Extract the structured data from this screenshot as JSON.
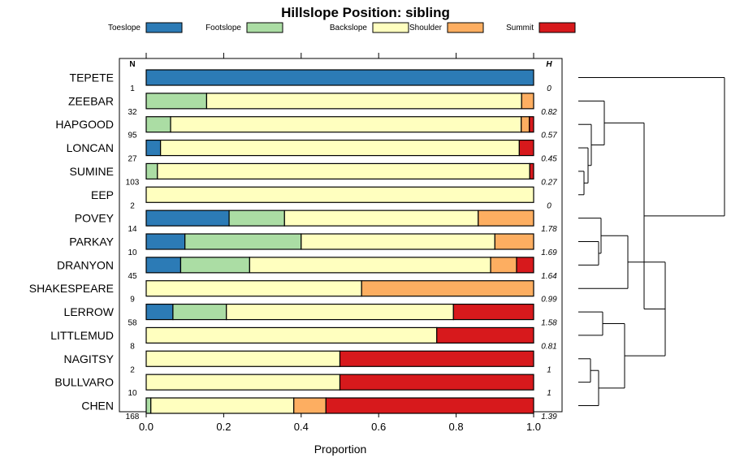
{
  "chart_data": {
    "type": "bar",
    "orientation": "horizontal",
    "stacked": true,
    "title": "Hillslope Position: sibling",
    "xlabel": "Proportion",
    "ylabel": "",
    "xlim": [
      0,
      1
    ],
    "xticks": [
      "0.0",
      "0.2",
      "0.4",
      "0.6",
      "0.8",
      "1.0"
    ],
    "legend_placement": "top",
    "n_header": "N",
    "h_header": "H",
    "series": [
      {
        "name": "Toeslope",
        "color": "#2c7bb6"
      },
      {
        "name": "Footslope",
        "color": "#abdda4"
      },
      {
        "name": "Backslope",
        "color": "#ffffbf"
      },
      {
        "name": "Shoulder",
        "color": "#fdae61"
      },
      {
        "name": "Summit",
        "color": "#d7191c"
      }
    ],
    "categories": [
      {
        "name": "TEPETE",
        "n": "1",
        "h": "0",
        "values": [
          1.0,
          0,
          0,
          0,
          0
        ]
      },
      {
        "name": "ZEEBAR",
        "n": "32",
        "h": "0.82",
        "values": [
          0,
          0.156,
          0.813,
          0.031,
          0
        ]
      },
      {
        "name": "HAPGOOD",
        "n": "95",
        "h": "0.57",
        "values": [
          0,
          0.063,
          0.905,
          0.021,
          0.011
        ]
      },
      {
        "name": "LONCAN",
        "n": "27",
        "h": "0.45",
        "values": [
          0.037,
          0,
          0.926,
          0,
          0.037
        ]
      },
      {
        "name": "SUMINE",
        "n": "103",
        "h": "0.27",
        "values": [
          0,
          0.029,
          0.961,
          0,
          0.01
        ]
      },
      {
        "name": "EEP",
        "n": "2",
        "h": "0",
        "values": [
          0,
          0,
          1.0,
          0,
          0
        ]
      },
      {
        "name": "POVEY",
        "n": "14",
        "h": "1.78",
        "values": [
          0.214,
          0.143,
          0.5,
          0.143,
          0
        ]
      },
      {
        "name": "PARKAY",
        "n": "10",
        "h": "1.69",
        "values": [
          0.1,
          0.3,
          0.5,
          0.1,
          0
        ]
      },
      {
        "name": "DRANYON",
        "n": "45",
        "h": "1.64",
        "values": [
          0.089,
          0.178,
          0.622,
          0.067,
          0.044
        ]
      },
      {
        "name": "SHAKESPEARE",
        "n": "9",
        "h": "0.99",
        "values": [
          0,
          0,
          0.556,
          0.444,
          0
        ]
      },
      {
        "name": "LERROW",
        "n": "58",
        "h": "1.58",
        "values": [
          0.069,
          0.138,
          0.586,
          0,
          0.207
        ]
      },
      {
        "name": "LITTLEMUD",
        "n": "8",
        "h": "0.81",
        "values": [
          0,
          0,
          0.75,
          0,
          0.25
        ]
      },
      {
        "name": "NAGITSY",
        "n": "2",
        "h": "1",
        "values": [
          0,
          0,
          0.5,
          0,
          0.5
        ]
      },
      {
        "name": "BULLVARO",
        "n": "10",
        "h": "1",
        "values": [
          0,
          0,
          0.5,
          0,
          0.5
        ]
      },
      {
        "name": "CHEN",
        "n": "168",
        "h": "1.39",
        "values": [
          0,
          0.012,
          0.369,
          0.083,
          0.536
        ]
      }
    ]
  }
}
